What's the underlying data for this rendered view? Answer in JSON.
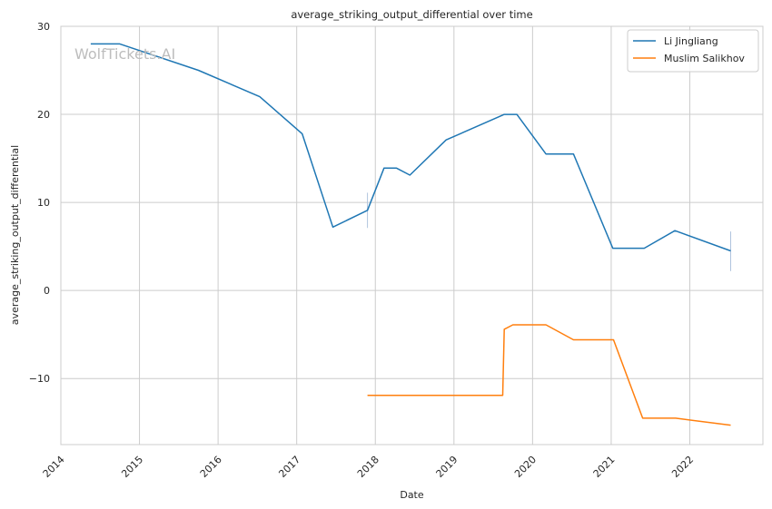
{
  "chart_data": {
    "type": "line",
    "title": "average_striking_output_differential over time",
    "xlabel": "Date",
    "ylabel": "average_striking_output_differential",
    "watermark": "WolfTickets.AI",
    "xlim": [
      2014.0,
      2022.93
    ],
    "ylim": [
      -17.5,
      30
    ],
    "x_ticks": [
      2014,
      2015,
      2016,
      2017,
      2018,
      2019,
      2020,
      2021,
      2022
    ],
    "y_ticks": [
      -10,
      0,
      10,
      20,
      30
    ],
    "y_tick_labels": [
      "−10",
      "0",
      "10",
      "20",
      "30"
    ],
    "grid": true,
    "legend_position": "top-right",
    "series": [
      {
        "name": "Li Jingliang",
        "color": "#1f77b4",
        "x": [
          2014.38,
          2014.75,
          2015.75,
          2016.53,
          2017.07,
          2017.46,
          2017.9,
          2018.11,
          2018.27,
          2018.44,
          2018.9,
          2019.64,
          2019.8,
          2020.17,
          2020.52,
          2021.02,
          2021.42,
          2021.81,
          2022.52
        ],
        "y": [
          28.0,
          28.0,
          25.0,
          22.0,
          17.8,
          7.2,
          9.1,
          13.9,
          13.9,
          13.1,
          17.1,
          20.0,
          20.0,
          15.5,
          15.5,
          4.8,
          4.8,
          6.8,
          4.5
        ]
      },
      {
        "name": "Muslim Salikhov",
        "color": "#ff7f0e",
        "x": [
          2017.9,
          2019.62,
          2019.64,
          2019.75,
          2020.17,
          2020.52,
          2021.03,
          2021.4,
          2021.82,
          2022.52
        ],
        "y": [
          -11.9,
          -11.9,
          -4.4,
          -3.9,
          -3.9,
          -5.6,
          -5.6,
          -14.5,
          -14.5,
          -15.3
        ]
      }
    ],
    "error_marks": [
      {
        "x": 2017.9,
        "y_low": 7.1,
        "y_high": 11.1
      },
      {
        "x": 2022.52,
        "y_low": 2.2,
        "y_high": 6.7
      }
    ]
  }
}
